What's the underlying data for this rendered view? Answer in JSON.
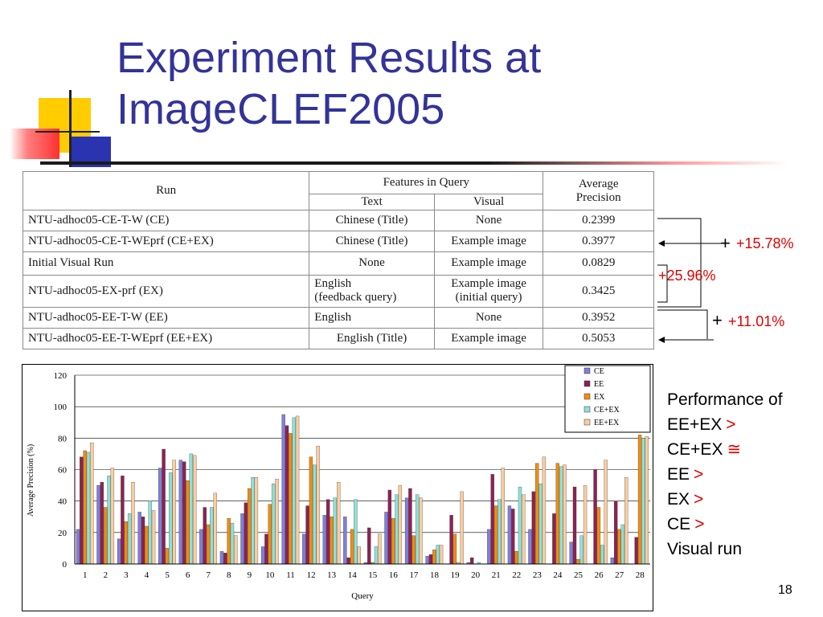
{
  "slide": {
    "title_line1": "Experiment Results at",
    "title_line2": "ImageCLEF2005",
    "page_number": "18"
  },
  "table": {
    "header_run": "Run",
    "header_features": "Features in Query",
    "header_text": "Text",
    "header_visual": "Visual",
    "header_ap_line1": "Average",
    "header_ap_line2": "Precision",
    "rows": [
      {
        "run": "NTU-adhoc05-CE-T-W (CE)",
        "text": "Chinese (Title)",
        "visual": "None",
        "ap": "0.2399"
      },
      {
        "run": "NTU-adhoc05-CE-T-WEprf (CE+EX)",
        "text": "Chinese (Title)",
        "visual": "Example image",
        "ap": "0.3977"
      },
      {
        "run": "Initial Visual Run",
        "text": "None",
        "visual": "Example image",
        "ap": "0.0829"
      },
      {
        "run": "NTU-adhoc05-EX-prf (EX)",
        "text_line1": "English",
        "text_line2": "(feedback query)",
        "visual_line1": "Example image",
        "visual_line2": "(initial query)",
        "ap": "0.3425"
      },
      {
        "run": "NTU-adhoc05-EE-T-W (EE)",
        "text": "English",
        "visual": "None",
        "ap": "0.3952"
      },
      {
        "run": "NTU-adhoc05-EE-T-WEprf (EE+EX)",
        "text": "English (Title)",
        "visual": "Example image",
        "ap": "0.5053"
      }
    ]
  },
  "annotations": {
    "plus_sign": "+",
    "gain_ce": "+15.78%",
    "gain_visual": "+25.96%",
    "gain_ee": "+11.01%"
  },
  "performance": {
    "heading": "Performance of",
    "lines": [
      {
        "text": "EE+EX",
        "symbol": ">"
      },
      {
        "text": "CE+EX",
        "symbol": "≅"
      },
      {
        "text": "EE",
        "symbol": ">"
      },
      {
        "text": "EX",
        "symbol": ">"
      },
      {
        "text": "CE",
        "symbol": ">"
      },
      {
        "text": "Visual run",
        "symbol": ""
      }
    ]
  },
  "colors": {
    "title": "#333399",
    "highlight": "#e00000",
    "series": [
      "#7f7fd9",
      "#8b2252",
      "#f28c0f",
      "#8fe0d8",
      "#f9cda0"
    ]
  },
  "chart_data": {
    "type": "bar",
    "xlabel": "Query",
    "ylabel": "Average Precision (%)",
    "ylim": [
      0,
      120
    ],
    "yticks": [
      0,
      20,
      40,
      60,
      80,
      100,
      120
    ],
    "grid": true,
    "legend_position": "top-right",
    "categories": [
      "1",
      "2",
      "3",
      "4",
      "5",
      "6",
      "7",
      "8",
      "9",
      "10",
      "11",
      "12",
      "13",
      "14",
      "15",
      "16",
      "17",
      "18",
      "19",
      "20",
      "21",
      "22",
      "23",
      "24",
      "25",
      "26",
      "27",
      "28"
    ],
    "series": [
      {
        "name": "CE",
        "values": [
          22,
          50,
          16,
          33,
          61,
          66,
          22,
          8,
          32,
          11,
          95,
          19,
          31,
          30,
          1,
          33,
          42,
          5,
          0,
          1,
          22,
          37,
          22,
          0,
          14,
          0,
          4,
          0
        ]
      },
      {
        "name": "EE",
        "values": [
          68,
          52,
          56,
          30,
          73,
          65,
          36,
          7,
          39,
          19,
          88,
          37,
          41,
          4,
          23,
          47,
          48,
          6,
          31,
          4,
          57,
          35,
          46,
          32,
          49,
          60,
          40,
          17
        ]
      },
      {
        "name": "EX",
        "values": [
          72,
          36,
          27,
          24,
          10,
          53,
          25,
          29,
          48,
          38,
          83,
          68,
          30,
          22,
          1,
          29,
          18,
          9,
          19,
          0,
          37,
          8,
          64,
          64,
          3,
          36,
          22,
          82
        ]
      },
      {
        "name": "CE+EX",
        "values": [
          71,
          56,
          32,
          40,
          58,
          70,
          36,
          26,
          55,
          51,
          93,
          63,
          42,
          41,
          11,
          44,
          44,
          12,
          1,
          1,
          41,
          49,
          51,
          62,
          18,
          12,
          25,
          80
        ]
      },
      {
        "name": "EE+EX",
        "values": [
          77,
          61,
          52,
          34,
          66,
          69,
          45,
          18,
          55,
          54,
          94,
          75,
          52,
          11,
          19,
          50,
          42,
          12,
          46,
          0,
          61,
          44,
          68,
          63,
          50,
          66,
          55,
          81
        ]
      }
    ]
  }
}
